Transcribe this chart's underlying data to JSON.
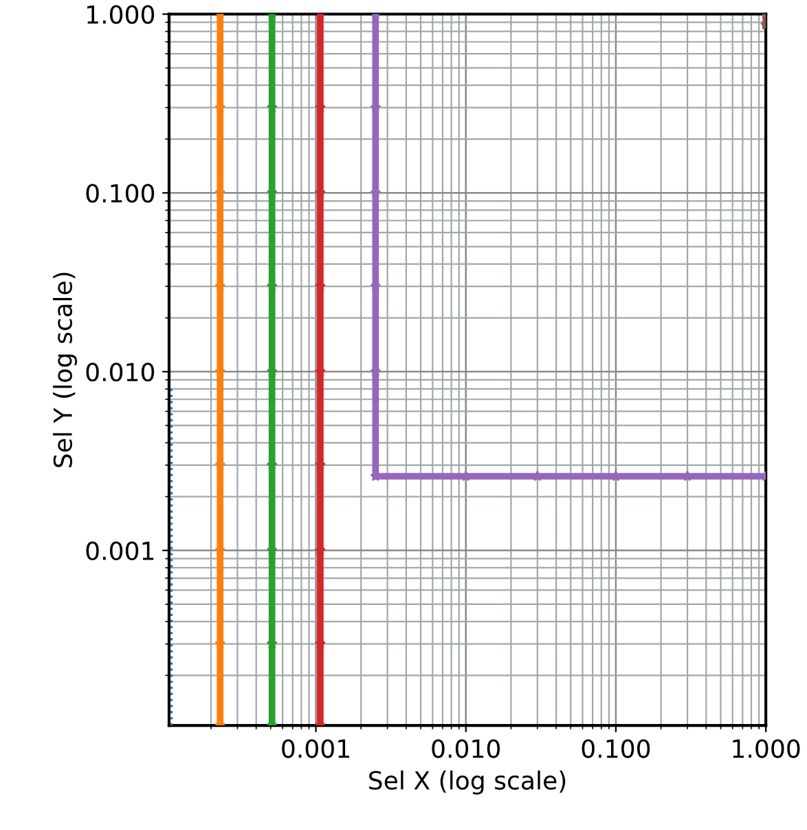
{
  "chart_data": {
    "type": "line",
    "xlabel": "Sel X (log scale)",
    "ylabel": "Sel Y (log scale)",
    "log": "xy",
    "grid": true,
    "marker": "star",
    "xlim": [
      0.000105,
      1.0
    ],
    "ylim": [
      0.000105,
      1.0
    ],
    "xticks": [
      {
        "value": 0.001,
        "label": "0.001"
      },
      {
        "value": 0.01,
        "label": "0.010"
      },
      {
        "value": 0.1,
        "label": "0.100"
      },
      {
        "value": 1.0,
        "label": "1.000"
      }
    ],
    "yticks": [
      {
        "value": 0.001,
        "label": "0.001"
      },
      {
        "value": 0.01,
        "label": "0.010"
      },
      {
        "value": 0.1,
        "label": "0.100"
      },
      {
        "value": 1.0,
        "label": "1.000"
      }
    ],
    "series": [
      {
        "color": "#1f77b4",
        "line_style": "dotted",
        "marker": "none",
        "x": [
          0.000109,
          0.000109
        ],
        "values": [
          0.000105,
          0.0084
        ]
      },
      {
        "color": "#ff7f0e",
        "x": [
          0.00023,
          0.00023,
          0.00023,
          0.00023,
          0.00023,
          0.00023,
          0.00023,
          0.00023,
          0.00023
        ],
        "values": [
          0.000105,
          0.0003,
          0.001,
          0.003,
          0.01,
          0.03,
          0.1,
          0.3,
          1.0
        ]
      },
      {
        "color": "#2ca02c",
        "x": [
          0.00051,
          0.00051,
          0.00051,
          0.00051,
          0.00051,
          0.00051,
          0.00051,
          0.00051,
          0.00051
        ],
        "values": [
          0.000105,
          0.0003,
          0.001,
          0.003,
          0.01,
          0.03,
          0.1,
          0.3,
          1.0
        ]
      },
      {
        "color": "#d62728",
        "x": [
          0.00107,
          0.00107,
          0.00107,
          0.00107,
          0.00107,
          0.00107,
          0.00107,
          0.00107,
          0.00107
        ],
        "values": [
          0.000105,
          0.0003,
          0.001,
          0.003,
          0.01,
          0.03,
          0.1,
          0.3,
          1.0
        ]
      },
      {
        "color": "#9467bd",
        "x": [
          0.0025,
          0.0025,
          0.0025,
          0.0025,
          0.0025,
          0.0025,
          0.01,
          0.03,
          0.1,
          0.3,
          1.0
        ],
        "values": [
          1.0,
          0.3,
          0.1,
          0.03,
          0.01,
          0.0026,
          0.0026,
          0.0026,
          0.0026,
          0.0026,
          0.0026
        ]
      },
      {
        "color": "#8c564b",
        "x": [
          1.0,
          1.0
        ],
        "values": [
          0.87,
          1.0
        ]
      }
    ]
  }
}
